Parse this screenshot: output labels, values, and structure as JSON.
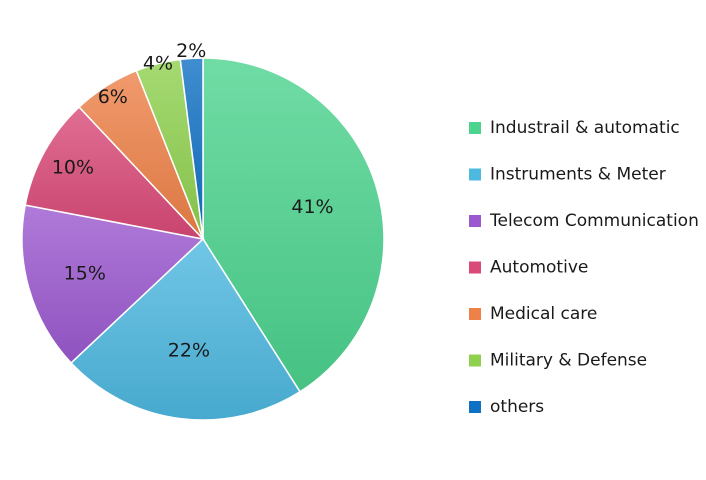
{
  "chart_data": {
    "type": "pie",
    "title": "",
    "legend_position": "right",
    "categories": [
      "Industrail & automatic",
      "Instruments & Meter",
      "Telecom Communication",
      "Automotive",
      "Medical care",
      "Military & Defense",
      "others"
    ],
    "values": [
      41,
      22,
      15,
      10,
      6,
      4,
      2
    ],
    "labels": [
      "41%",
      "22%",
      "15%",
      "10%",
      "6%",
      "4%",
      "2%"
    ],
    "colors": [
      "#4cd38e",
      "#4db8e0",
      "#9b59d0",
      "#d94a78",
      "#ee8148",
      "#8fd14f",
      "#1070c4"
    ]
  }
}
